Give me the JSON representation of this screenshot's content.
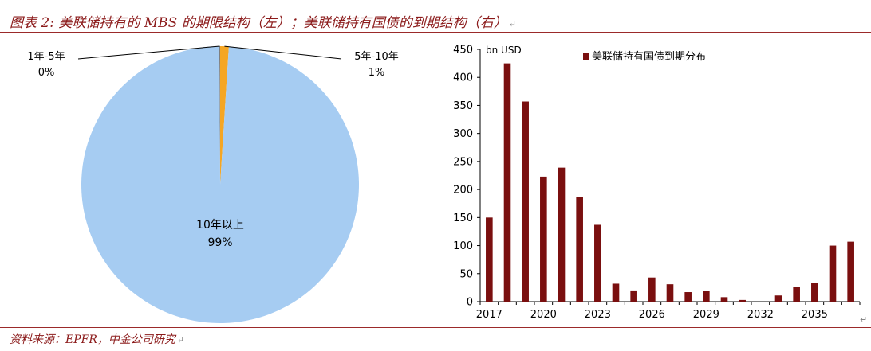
{
  "figure": {
    "title": "图表 2: 美联储持有的 MBS 的期限结构（左）；美联储持有国债的到期结构（右）",
    "source": "资料来源：EPFR，中金公司研究",
    "para_mark": "↵"
  },
  "chart_data": [
    {
      "type": "pie",
      "slices": [
        {
          "label": "1年-5年",
          "value": 0.1,
          "pct_label": "0%",
          "color": "#7f7f7f"
        },
        {
          "label": "5年-10年",
          "value": 1,
          "pct_label": "1%",
          "color": "#f5a623"
        },
        {
          "label": "10年以上",
          "value": 99,
          "pct_label": "99%",
          "color": "#a6ccf2"
        }
      ]
    },
    {
      "type": "bar",
      "unit_label": "bn USD",
      "legend": "美联储持有国债到期分布",
      "legend_position": "top",
      "bar_color": "#7a0f0f",
      "ylim": [
        0,
        450
      ],
      "yticks": [
        0,
        50,
        100,
        150,
        200,
        250,
        300,
        350,
        400,
        450
      ],
      "x_tick_labels": [
        "2017",
        "2020",
        "2023",
        "2026",
        "2029",
        "2032",
        "2035"
      ],
      "categories": [
        2017,
        2018,
        2019,
        2020,
        2021,
        2022,
        2023,
        2024,
        2025,
        2026,
        2027,
        2028,
        2029,
        2030,
        2031,
        2032,
        2033,
        2034,
        2035,
        2036,
        2037
      ],
      "values": [
        150,
        425,
        357,
        223,
        239,
        187,
        137,
        32,
        20,
        43,
        31,
        17,
        19,
        8,
        3,
        0,
        11,
        26,
        33,
        100,
        107
      ]
    }
  ]
}
